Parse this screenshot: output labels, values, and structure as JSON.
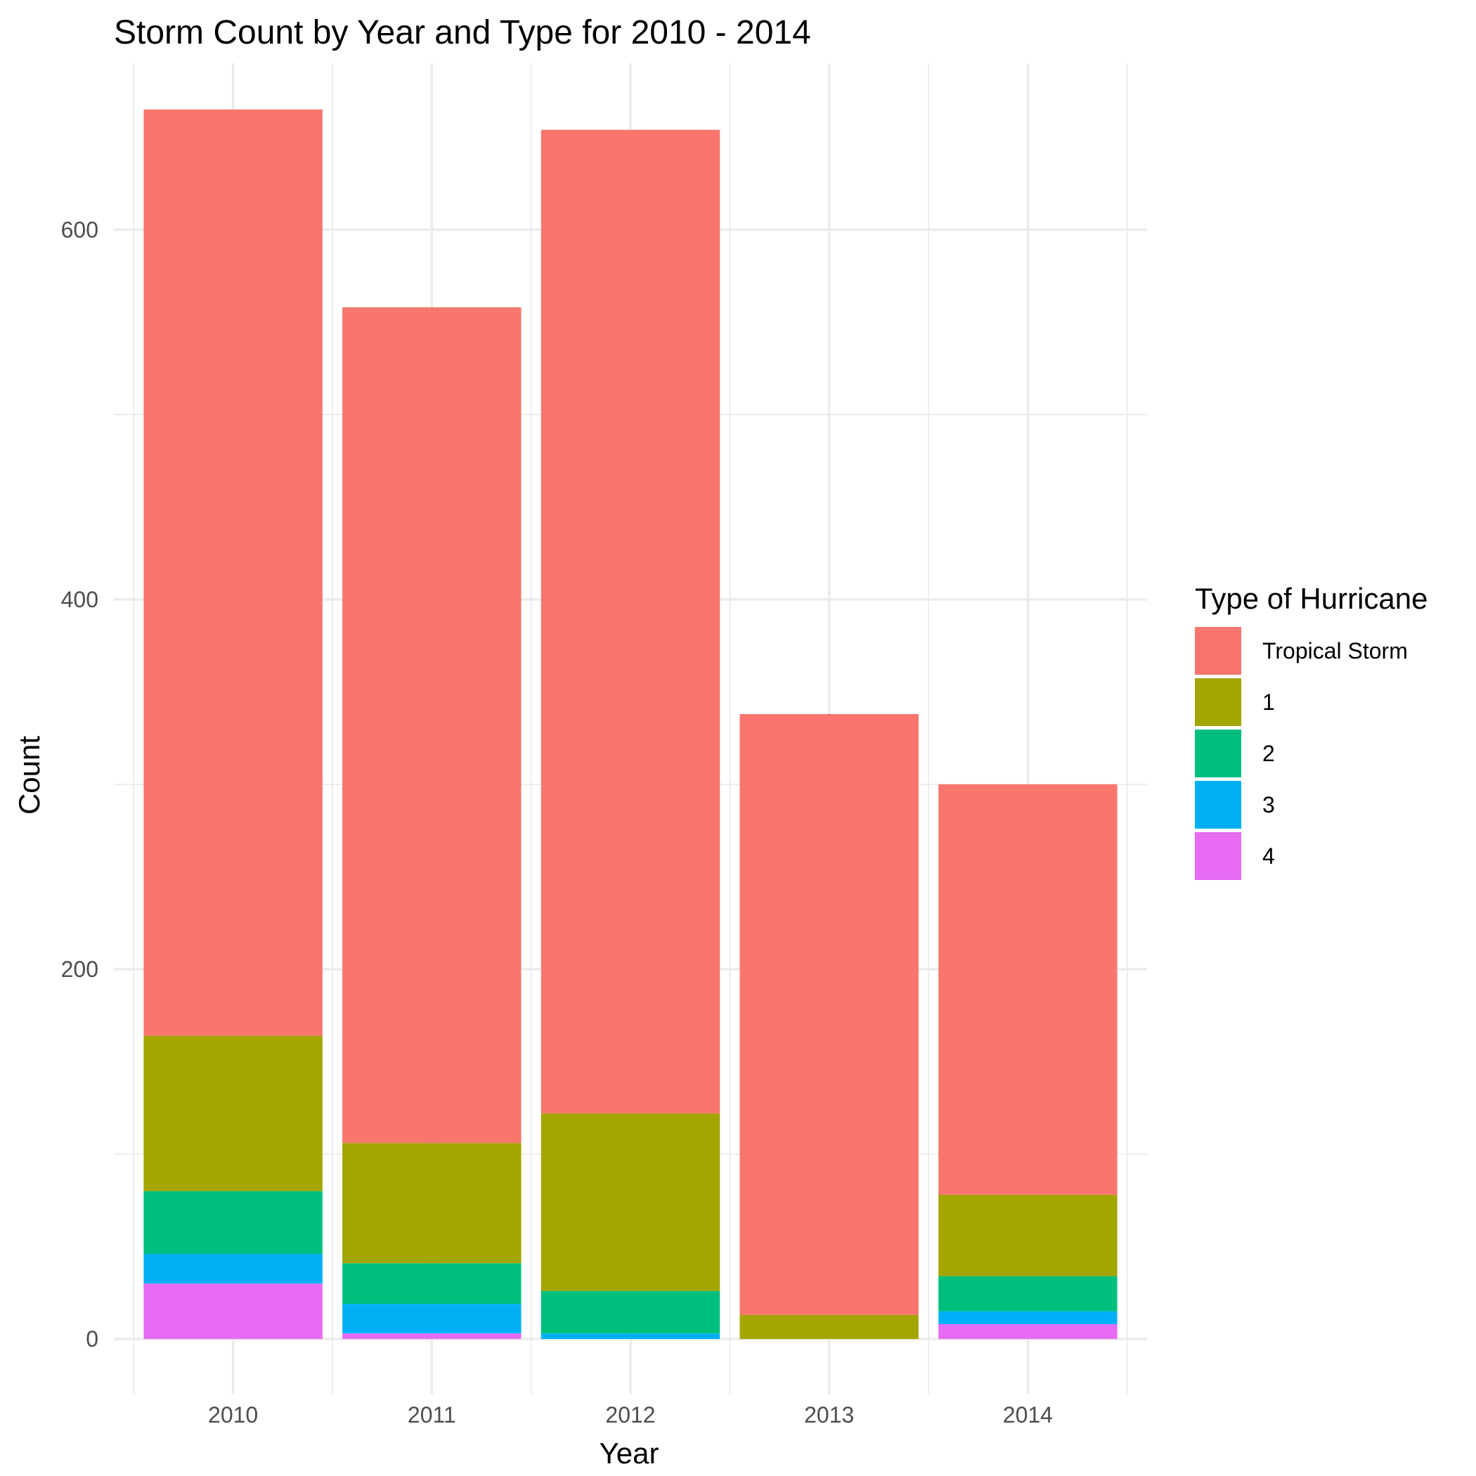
{
  "chart_data": {
    "type": "bar",
    "stacked": true,
    "title": "Storm Count by Year and Type for 2010 - 2014",
    "xlabel": "Year",
    "ylabel": "Count",
    "categories": [
      "2010",
      "2011",
      "2012",
      "2013",
      "2014"
    ],
    "ylim": [
      -30,
      690
    ],
    "yticks": [
      0,
      200,
      400,
      600
    ],
    "grid": true,
    "legend_title": "Type of Hurricane",
    "legend_position": "right",
    "series": [
      {
        "name": "Tropical Storm",
        "color": "#F8766D",
        "values": [
          501,
          452,
          532,
          325,
          222
        ]
      },
      {
        "name": "1",
        "color": "#A3A500",
        "values": [
          84,
          65,
          96,
          13,
          44
        ]
      },
      {
        "name": "2",
        "color": "#00BF7D",
        "values": [
          34,
          22,
          23,
          0,
          19
        ]
      },
      {
        "name": "3",
        "color": "#00B0F6",
        "values": [
          16,
          16,
          3,
          0,
          7
        ]
      },
      {
        "name": "4",
        "color": "#E76BF3",
        "values": [
          30,
          3,
          0,
          0,
          8
        ]
      }
    ]
  }
}
